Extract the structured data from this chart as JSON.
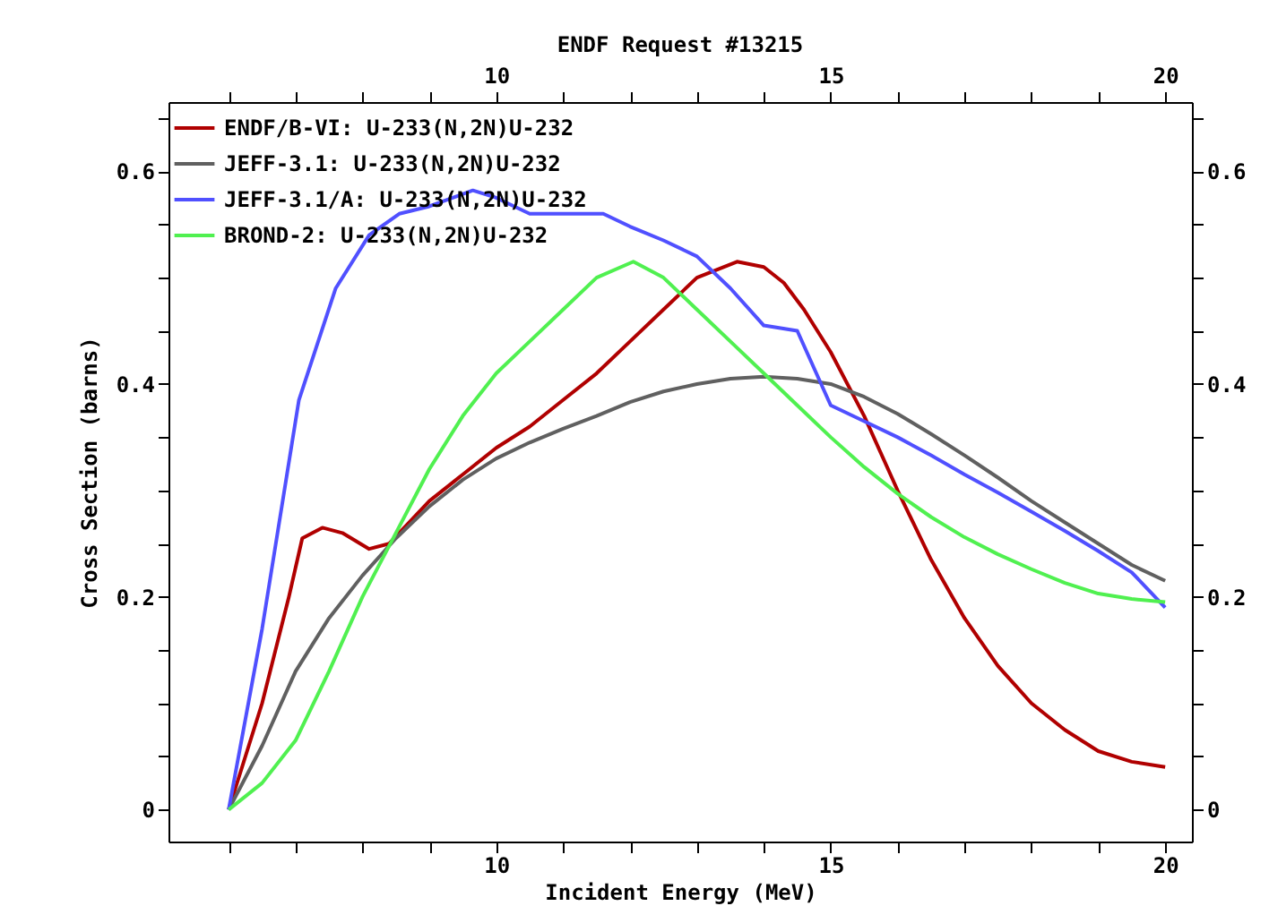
{
  "chart_data": {
    "type": "line",
    "title": "ENDF Request #13215",
    "xlabel": "Incident Energy (MeV)",
    "ylabel": "Cross Section (barns)",
    "xlim": [
      5.1,
      20.4
    ],
    "ylim": [
      -0.03,
      0.665
    ],
    "xticks": [
      {
        "value": 6,
        "label": null
      },
      {
        "value": 7,
        "label": null
      },
      {
        "value": 8,
        "label": null
      },
      {
        "value": 9,
        "label": null
      },
      10,
      {
        "value": 11,
        "label": null
      },
      {
        "value": 12,
        "label": null
      },
      {
        "value": 13,
        "label": null
      },
      {
        "value": 14,
        "label": null
      },
      15,
      {
        "value": 16,
        "label": null
      },
      {
        "value": 17,
        "label": null
      },
      {
        "value": 18,
        "label": null
      },
      {
        "value": 19,
        "label": null
      },
      20
    ],
    "x2lim": [
      5.1,
      20.4
    ],
    "x2ticks": [
      {
        "value": 6,
        "label": null
      },
      {
        "value": 7,
        "label": null
      },
      {
        "value": 8,
        "label": null
      },
      {
        "value": 9,
        "label": null
      },
      10,
      {
        "value": 11,
        "label": null
      },
      {
        "value": 12,
        "label": null
      },
      {
        "value": 13,
        "label": null
      },
      {
        "value": 14,
        "label": null
      },
      15,
      {
        "value": 16,
        "label": null
      },
      {
        "value": 17,
        "label": null
      },
      {
        "value": 18,
        "label": null
      },
      {
        "value": 19,
        "label": null
      },
      20
    ],
    "yticks": [
      0,
      {
        "value": 0.05,
        "label": null
      },
      {
        "value": 0.1,
        "label": null
      },
      {
        "value": 0.15,
        "label": null
      },
      0.2,
      {
        "value": 0.25,
        "label": null
      },
      {
        "value": 0.3,
        "label": null
      },
      {
        "value": 0.35,
        "label": null
      },
      0.4,
      {
        "value": 0.45,
        "label": null
      },
      {
        "value": 0.5,
        "label": null
      },
      {
        "value": 0.55,
        "label": null
      },
      0.6,
      {
        "value": 0.65,
        "label": null
      }
    ],
    "y2lim": [
      -0.03,
      0.665
    ],
    "y2ticks": [
      0,
      {
        "value": 0.05,
        "label": null
      },
      {
        "value": 0.1,
        "label": null
      },
      {
        "value": 0.15,
        "label": null
      },
      0.2,
      {
        "value": 0.25,
        "label": null
      },
      {
        "value": 0.3,
        "label": null
      },
      {
        "value": 0.35,
        "label": null
      },
      0.4,
      {
        "value": 0.45,
        "label": null
      },
      {
        "value": 0.5,
        "label": null
      },
      {
        "value": 0.55,
        "label": null
      },
      0.6,
      {
        "value": 0.65,
        "label": null
      }
    ],
    "grid": false,
    "legend": "top left",
    "marker": "none",
    "line_style": "solid",
    "series": [
      {
        "name": "ENDF/B-VI: U-233(N,2N)U-232",
        "color": "#b00000",
        "x": [
          6,
          6.5,
          6.9,
          7.1,
          7.4,
          7.7,
          8.1,
          8.4,
          9,
          9.5,
          10,
          10.5,
          11,
          11.5,
          12,
          12.5,
          13,
          13.6,
          14,
          14.3,
          14.6,
          15,
          15.5,
          16,
          16.5,
          17,
          17.5,
          18,
          18.5,
          19,
          19.5,
          20
        ],
        "values": [
          0,
          0.1,
          0.2,
          0.255,
          0.265,
          0.26,
          0.245,
          0.25,
          0.29,
          0.315,
          0.34,
          0.36,
          0.385,
          0.41,
          0.44,
          0.47,
          0.5,
          0.515,
          0.51,
          0.495,
          0.47,
          0.43,
          0.37,
          0.3,
          0.235,
          0.18,
          0.135,
          0.1,
          0.075,
          0.055,
          0.045,
          0.04
        ]
      },
      {
        "name": "JEFF-3.1: U-233(N,2N)U-232",
        "color": "#606060",
        "x": [
          6,
          6.5,
          7,
          7.5,
          8,
          8.5,
          9,
          9.5,
          10,
          10.5,
          11,
          11.5,
          12,
          12.5,
          13,
          13.5,
          14,
          14.5,
          15,
          15.5,
          16,
          16.5,
          17,
          17.5,
          18,
          18.5,
          19,
          19.5,
          20
        ],
        "values": [
          0,
          0.06,
          0.13,
          0.18,
          0.22,
          0.255,
          0.285,
          0.31,
          0.33,
          0.345,
          0.358,
          0.37,
          0.383,
          0.393,
          0.4,
          0.405,
          0.407,
          0.405,
          0.4,
          0.388,
          0.372,
          0.353,
          0.333,
          0.312,
          0.29,
          0.27,
          0.25,
          0.23,
          0.215
        ]
      },
      {
        "name": "JEFF-3.1/A: U-233(N,2N)U-232",
        "color": "#5050ff",
        "x": [
          6,
          6.5,
          7.05,
          7.6,
          8.1,
          8.55,
          9,
          9.65,
          10,
          10.5,
          11,
          11.6,
          12,
          12.5,
          13,
          13.5,
          14,
          14.5,
          15,
          15.5,
          16,
          16.5,
          17,
          17.5,
          18,
          18.5,
          19,
          19.5,
          20
        ],
        "values": [
          0,
          0.17,
          0.385,
          0.49,
          0.54,
          0.56,
          0.567,
          0.582,
          0.575,
          0.56,
          0.56,
          0.56,
          0.548,
          0.535,
          0.52,
          0.49,
          0.455,
          0.45,
          0.38,
          0.365,
          0.35,
          0.333,
          0.315,
          0.298,
          0.28,
          0.262,
          0.243,
          0.223,
          0.19
        ]
      },
      {
        "name": "BROND-2: U-233(N,2N)U-232",
        "color": "#50f050",
        "x": [
          6,
          6.5,
          7,
          7.5,
          8,
          8.5,
          9,
          9.5,
          10,
          10.5,
          11,
          11.5,
          12.05,
          12.5,
          13,
          13.5,
          14,
          14.5,
          15,
          15.5,
          16,
          16.5,
          17,
          17.5,
          18,
          18.5,
          19,
          19.5,
          20
        ],
        "values": [
          0,
          0.025,
          0.065,
          0.13,
          0.2,
          0.26,
          0.32,
          0.37,
          0.41,
          0.44,
          0.47,
          0.5,
          0.515,
          0.5,
          0.47,
          0.44,
          0.41,
          0.38,
          0.35,
          0.322,
          0.297,
          0.275,
          0.256,
          0.24,
          0.226,
          0.213,
          0.203,
          0.198,
          0.195
        ]
      }
    ]
  }
}
